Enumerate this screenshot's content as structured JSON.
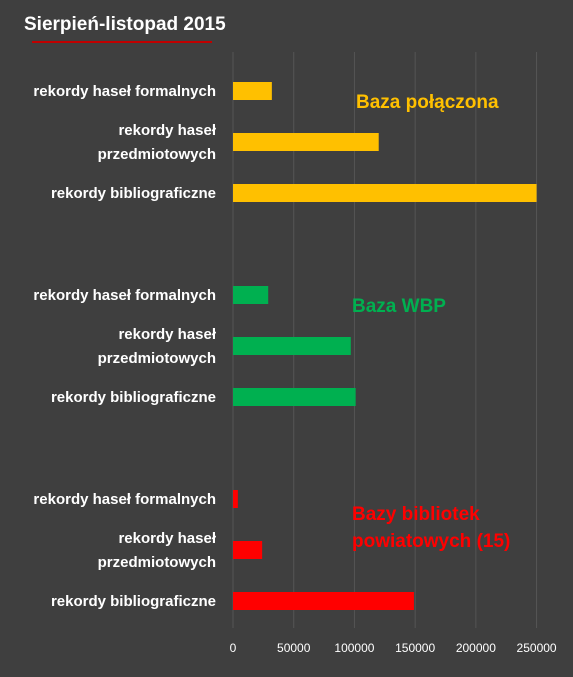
{
  "chart_data": {
    "type": "bar",
    "orientation": "horizontal",
    "title": "Sierpień-listopad 2015",
    "xlim": [
      0,
      280000
    ],
    "x_ticks": [
      "0",
      "50000",
      "100000",
      "150000",
      "200000",
      "250000"
    ],
    "x_tick_values": [
      0,
      50000,
      100000,
      150000,
      200000,
      250000
    ],
    "grid": true,
    "groups": [
      {
        "label": "Baza połączona",
        "color": "#ffc000",
        "categories": [
          [
            "rekordy haseł formalnych"
          ],
          [
            "rekordy haseł",
            "przedmiotowych"
          ],
          [
            "rekordy bibliograficzne"
          ]
        ],
        "values": [
          32000,
          120000,
          250000
        ]
      },
      {
        "label": "Baza WBP",
        "color": "#00b050",
        "categories": [
          [
            "rekordy haseł formalnych"
          ],
          [
            "rekordy haseł",
            "przedmiotowych"
          ],
          [
            "rekordy bibliograficzne"
          ]
        ],
        "values": [
          29000,
          97000,
          101000
        ]
      },
      {
        "label": [
          "Bazy bibliotek",
          "powiatowych (15)"
        ],
        "color": "#ff0000",
        "categories": [
          [
            "rekordy haseł formalnych"
          ],
          [
            "rekordy haseł",
            "przedmiotowych"
          ],
          [
            "rekordy bibliograficzne"
          ]
        ],
        "values": [
          4000,
          24000,
          149000
        ]
      }
    ]
  },
  "colors": {
    "background": "#3f3f3f",
    "gridline": "#555555",
    "title_underline": "#c00000",
    "text": "#ffffff"
  }
}
